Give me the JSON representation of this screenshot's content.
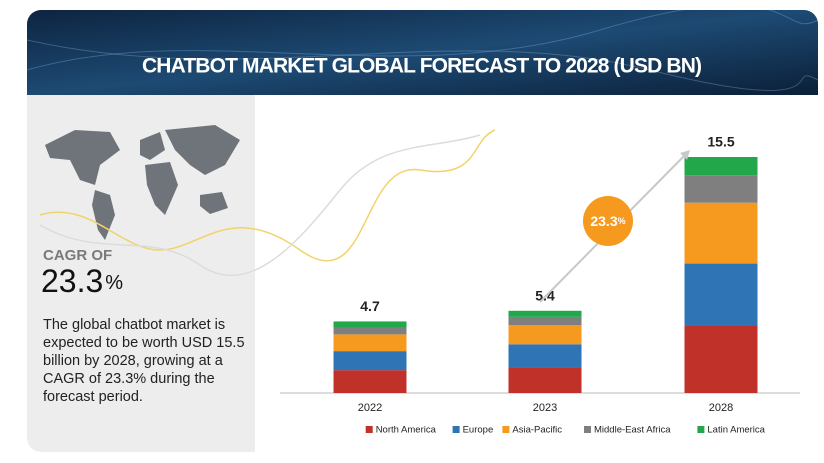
{
  "header": {
    "title": "CHATBOT MARKET GLOBAL FORECAST TO 2028 (USD BN)"
  },
  "summary": {
    "cagr_label": "CAGR OF",
    "cagr_value": 23.3,
    "cagr_unit": "%",
    "description": "The global chatbot market is expected to be worth USD 15.5 billion by 2028, growing at a CAGR of 23.3% during the forecast period."
  },
  "chart_data": {
    "type": "bar",
    "stacked": true,
    "categories": [
      "2022",
      "2023",
      "2028"
    ],
    "totals": [
      4.7,
      5.4,
      15.5
    ],
    "series": [
      {
        "name": "North America",
        "color": "#c0312a",
        "values": [
          1.5,
          1.7,
          4.4
        ]
      },
      {
        "name": "Europe",
        "color": "#2f74b5",
        "values": [
          1.25,
          1.5,
          4.1
        ]
      },
      {
        "name": "Asia-Pacific",
        "color": "#f59a1e",
        "values": [
          1.1,
          1.25,
          4.0
        ]
      },
      {
        "name": "Middle-East Africa",
        "color": "#7f7f7f",
        "values": [
          0.45,
          0.55,
          1.8
        ]
      },
      {
        "name": "Latin America",
        "color": "#22a84a",
        "values": [
          0.4,
          0.4,
          1.2
        ]
      }
    ],
    "annotation": {
      "value": 23.3,
      "unit": "%",
      "color": "#f59a1e"
    }
  }
}
